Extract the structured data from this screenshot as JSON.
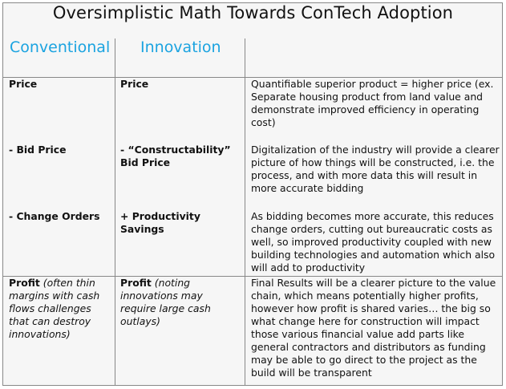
{
  "title": "Oversimplistic Math Towards ConTech Adoption",
  "headers": {
    "conventional": "Conventional",
    "innovation": "Innovation"
  },
  "rows": [
    {
      "conventional": "Price",
      "innovation": "Price",
      "description": "Quantifiable superior product = higher price (ex. Separate housing product from land value and demonstrate improved efficiency in operating cost)"
    },
    {
      "conventional": "- Bid Price",
      "innovation": "- “Constructability” Bid Price",
      "description": "Digitalization of the industry will provide a clearer picture of how things will be constructed, i.e. the process, and with more data this will result in more accurate bidding"
    },
    {
      "conventional": "- Change Orders",
      "innovation": "+ Productivity Savings",
      "description": "As bidding becomes more accurate, this reduces change orders, cutting out bureaucratic costs as well, so improved productivity coupled with new building technologies and automation which also will add to productivity"
    },
    {
      "conventional": "Profit",
      "conventional_note": "(often thin margins with cash flows challenges that can destroy innovations)",
      "innovation": "Profit",
      "innovation_note": "(noting innovations may require large cash outlays)",
      "description": "Final Results will be a clearer picture to the value chain, which means potentially higher profits, however how profit is shared varies… the big so what change here for construction will impact those various financial value add parts like general contractors and distributors as funding may be able to go direct to the project as the build will be transparent"
    }
  ]
}
